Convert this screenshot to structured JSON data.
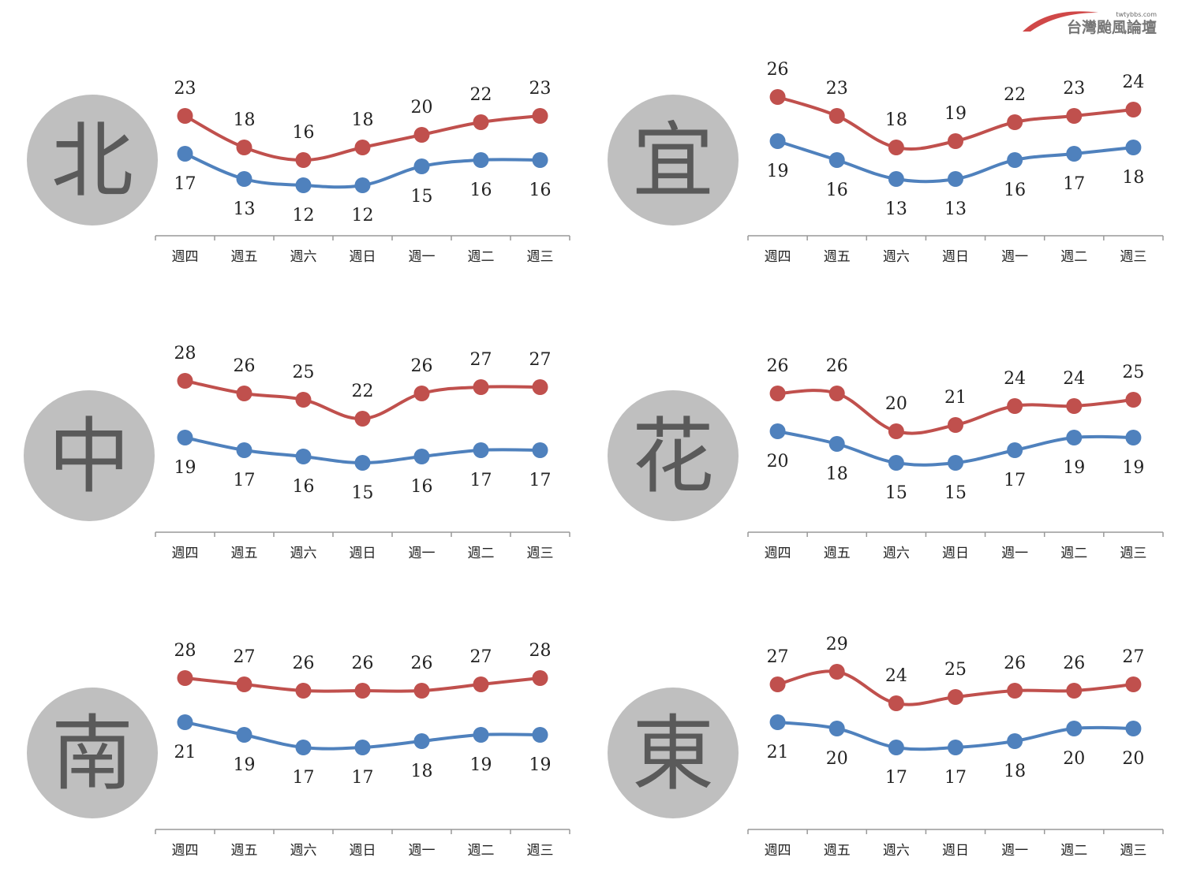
{
  "logo": {
    "text": "台灣颱風論壇",
    "url": "twtybbs.com"
  },
  "colors": {
    "high": "#c0504d",
    "low": "#4f81bd",
    "circle": "#bfbfbf",
    "axis": "#999999"
  },
  "chart_data": [
    {
      "type": "line",
      "region": "北",
      "categories": [
        "週四",
        "週五",
        "週六",
        "週日",
        "週一",
        "週二",
        "週三"
      ],
      "series": [
        {
          "values": [
            23,
            18,
            16,
            18,
            20,
            22,
            23
          ]
        },
        {
          "values": [
            17,
            13,
            12,
            12,
            15,
            16,
            16
          ]
        }
      ]
    },
    {
      "type": "line",
      "region": "宜",
      "categories": [
        "週四",
        "週五",
        "週六",
        "週日",
        "週一",
        "週二",
        "週三"
      ],
      "series": [
        {
          "values": [
            26,
            23,
            18,
            19,
            22,
            23,
            24
          ]
        },
        {
          "values": [
            19,
            16,
            13,
            13,
            16,
            17,
            18
          ]
        }
      ]
    },
    {
      "type": "line",
      "region": "中",
      "categories": [
        "週四",
        "週五",
        "週六",
        "週日",
        "週一",
        "週二",
        "週三"
      ],
      "series": [
        {
          "values": [
            28,
            26,
            25,
            22,
            26,
            27,
            27
          ]
        },
        {
          "values": [
            19,
            17,
            16,
            15,
            16,
            17,
            17
          ]
        }
      ]
    },
    {
      "type": "line",
      "region": "花",
      "categories": [
        "週四",
        "週五",
        "週六",
        "週日",
        "週一",
        "週二",
        "週三"
      ],
      "series": [
        {
          "values": [
            26,
            26,
            20,
            21,
            24,
            24,
            25
          ]
        },
        {
          "values": [
            20,
            18,
            15,
            15,
            17,
            19,
            19
          ]
        }
      ]
    },
    {
      "type": "line",
      "region": "南",
      "categories": [
        "週四",
        "週五",
        "週六",
        "週日",
        "週一",
        "週二",
        "週三"
      ],
      "series": [
        {
          "values": [
            28,
            27,
            26,
            26,
            26,
            27,
            28
          ]
        },
        {
          "values": [
            21,
            19,
            17,
            17,
            18,
            19,
            19
          ]
        }
      ]
    },
    {
      "type": "line",
      "region": "東",
      "categories": [
        "週四",
        "週五",
        "週六",
        "週日",
        "週一",
        "週二",
        "週三"
      ],
      "series": [
        {
          "values": [
            27,
            29,
            24,
            25,
            26,
            26,
            27
          ]
        },
        {
          "values": [
            21,
            20,
            17,
            17,
            18,
            20,
            20
          ]
        }
      ]
    }
  ]
}
